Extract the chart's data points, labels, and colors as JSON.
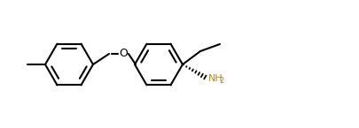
{
  "bg_color": "#ffffff",
  "line_color": "#000000",
  "nh2_color": "#b8860b",
  "line_width": 1.5,
  "fig_width": 4.05,
  "fig_height": 1.45,
  "dpi": 100
}
